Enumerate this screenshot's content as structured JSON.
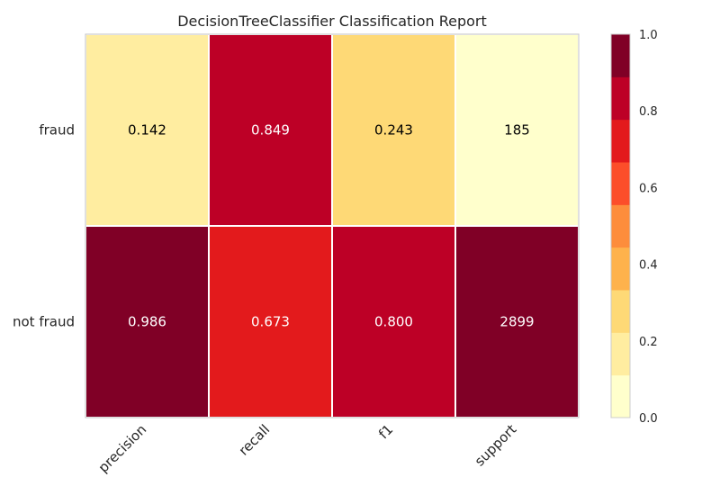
{
  "chart_data": {
    "type": "heatmap",
    "title": "DecisionTreeClassifier Classification Report",
    "columns": [
      "precision",
      "recall",
      "f1",
      "support"
    ],
    "rows": [
      "fraud",
      "not fraud"
    ],
    "values": [
      [
        0.142,
        0.849,
        0.243,
        185
      ],
      [
        0.986,
        0.673,
        0.8,
        2899
      ]
    ],
    "labels": [
      [
        "0.142",
        "0.849",
        "0.243",
        "185"
      ],
      [
        "0.986",
        "0.673",
        "0.800",
        "2899"
      ]
    ],
    "color_fraction": [
      [
        0.142,
        0.849,
        0.243,
        0.064
      ],
      [
        0.986,
        0.673,
        0.8,
        1.0
      ]
    ],
    "colorbar": {
      "range": [
        0.0,
        1.0
      ],
      "ticks": [
        "0.0",
        "0.2",
        "0.4",
        "0.6",
        "0.8",
        "1.0"
      ],
      "tick_values": [
        0.0,
        0.2,
        0.4,
        0.6,
        0.8,
        1.0
      ],
      "colors": [
        "#ffffcc",
        "#ffeda0",
        "#fed976",
        "#feb24c",
        "#fd8d3c",
        "#fc4e2a",
        "#e31a1c",
        "#bd0026",
        "#800026"
      ]
    }
  }
}
